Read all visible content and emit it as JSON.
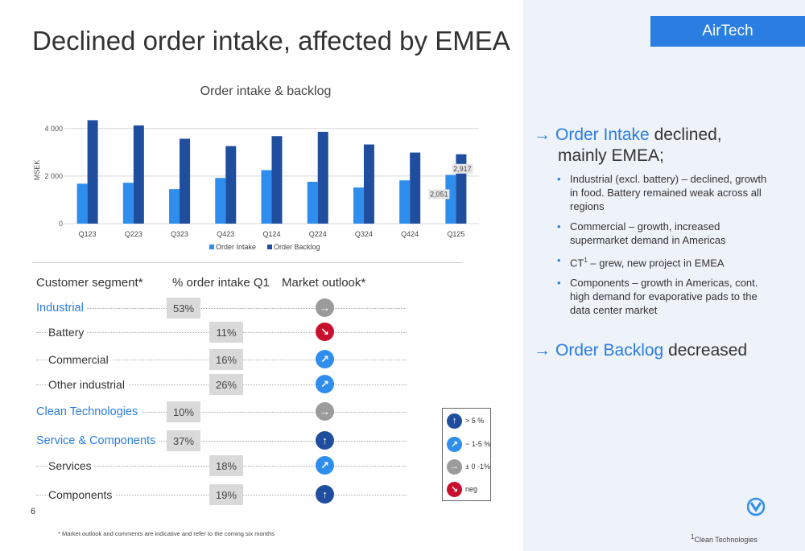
{
  "title": "Declined order intake, affected by EMEA",
  "brand_tab": "AirTech",
  "chart_data": {
    "type": "bar",
    "title": "Order intake & backlog",
    "ylabel": "MSEK",
    "xlabel": "",
    "ylim": [
      0,
      4500
    ],
    "yticks": [
      0,
      2000,
      4000
    ],
    "ytick_labels": [
      "0",
      "2 000",
      "4 000"
    ],
    "categories": [
      "Q123",
      "Q223",
      "Q323",
      "Q423",
      "Q124",
      "Q224",
      "Q324",
      "Q424",
      "Q125"
    ],
    "series": [
      {
        "name": "Order Intake",
        "color": "#2f8eed",
        "values": [
          1680,
          1720,
          1450,
          1920,
          2250,
          1760,
          1520,
          1820,
          2051
        ]
      },
      {
        "name": "Order Backlog",
        "color": "#1f4e9e",
        "values": [
          4350,
          4130,
          3570,
          3260,
          3680,
          3860,
          3330,
          2990,
          2917
        ]
      }
    ],
    "data_labels": [
      {
        "category": "Q125",
        "series": "Order Backlog",
        "text": "2,917"
      },
      {
        "category": "Q125",
        "series": "Order Intake",
        "text": "2,051"
      }
    ],
    "grid": true,
    "legend": "bottom"
  },
  "table": {
    "headers": {
      "segment": "Customer segment*",
      "pct": "% order intake Q1",
      "outlook": "Market outlook*"
    },
    "rows": [
      {
        "label": "Industrial",
        "pct": "53%",
        "outlook": "flat",
        "top": true
      },
      {
        "label": "Battery",
        "pct": "11%",
        "outlook": "neg",
        "top": false
      },
      {
        "label": "Commercial",
        "pct": "16%",
        "outlook": "up-mid",
        "top": false
      },
      {
        "label": "Other industrial",
        "pct": "26%",
        "outlook": "up-mid",
        "top": false
      },
      {
        "label": "Clean Technologies",
        "pct": "10%",
        "outlook": "flat",
        "top": true
      },
      {
        "label": "Service & Components",
        "pct": "37%",
        "outlook": "up-strong",
        "top": true
      },
      {
        "label": "Services",
        "pct": "18%",
        "outlook": "up-mid",
        "top": false
      },
      {
        "label": "Components",
        "pct": "19%",
        "outlook": "up-strong",
        "top": false
      }
    ]
  },
  "outlook_legend": [
    {
      "key": "up-strong",
      "text": "> 5 %",
      "color": "#1f4e9e",
      "icon": "arrow-up-icon"
    },
    {
      "key": "up-mid",
      "text": "~ 1-5 %",
      "color": "#2f8eed",
      "icon": "arrow-up-right-icon"
    },
    {
      "key": "flat",
      "text": "± 0 -1%",
      "color": "#9b9b9b",
      "icon": "arrow-right-icon"
    },
    {
      "key": "neg",
      "text": "neg",
      "color": "#c8102e",
      "icon": "arrow-down-right-icon"
    }
  ],
  "page_number": "6",
  "footnote": "* Market outlook and comments are indicative and refer to the coming six months",
  "right": {
    "intake": {
      "blue": "Order Intake",
      "rest": " declined,",
      "line2": "mainly EMEA;"
    },
    "bullets": {
      "b1": "Industrial (excl. battery) – declined, growth in food. Battery remained weak across all regions",
      "b2": "Commercial – growth, increased supermarket demand in Americas",
      "b3_pre": "CT",
      "b3_sup": "1",
      "b3_post": " – grew, new project in EMEA",
      "b4": "Components – growth in Americas, cont. high demand for evaporative pads to the data center market"
    },
    "backlog": {
      "blue": "Order Backlog",
      "rest": " decreased"
    },
    "footnote_sup": "1",
    "footnote": "Clean Technologies"
  }
}
